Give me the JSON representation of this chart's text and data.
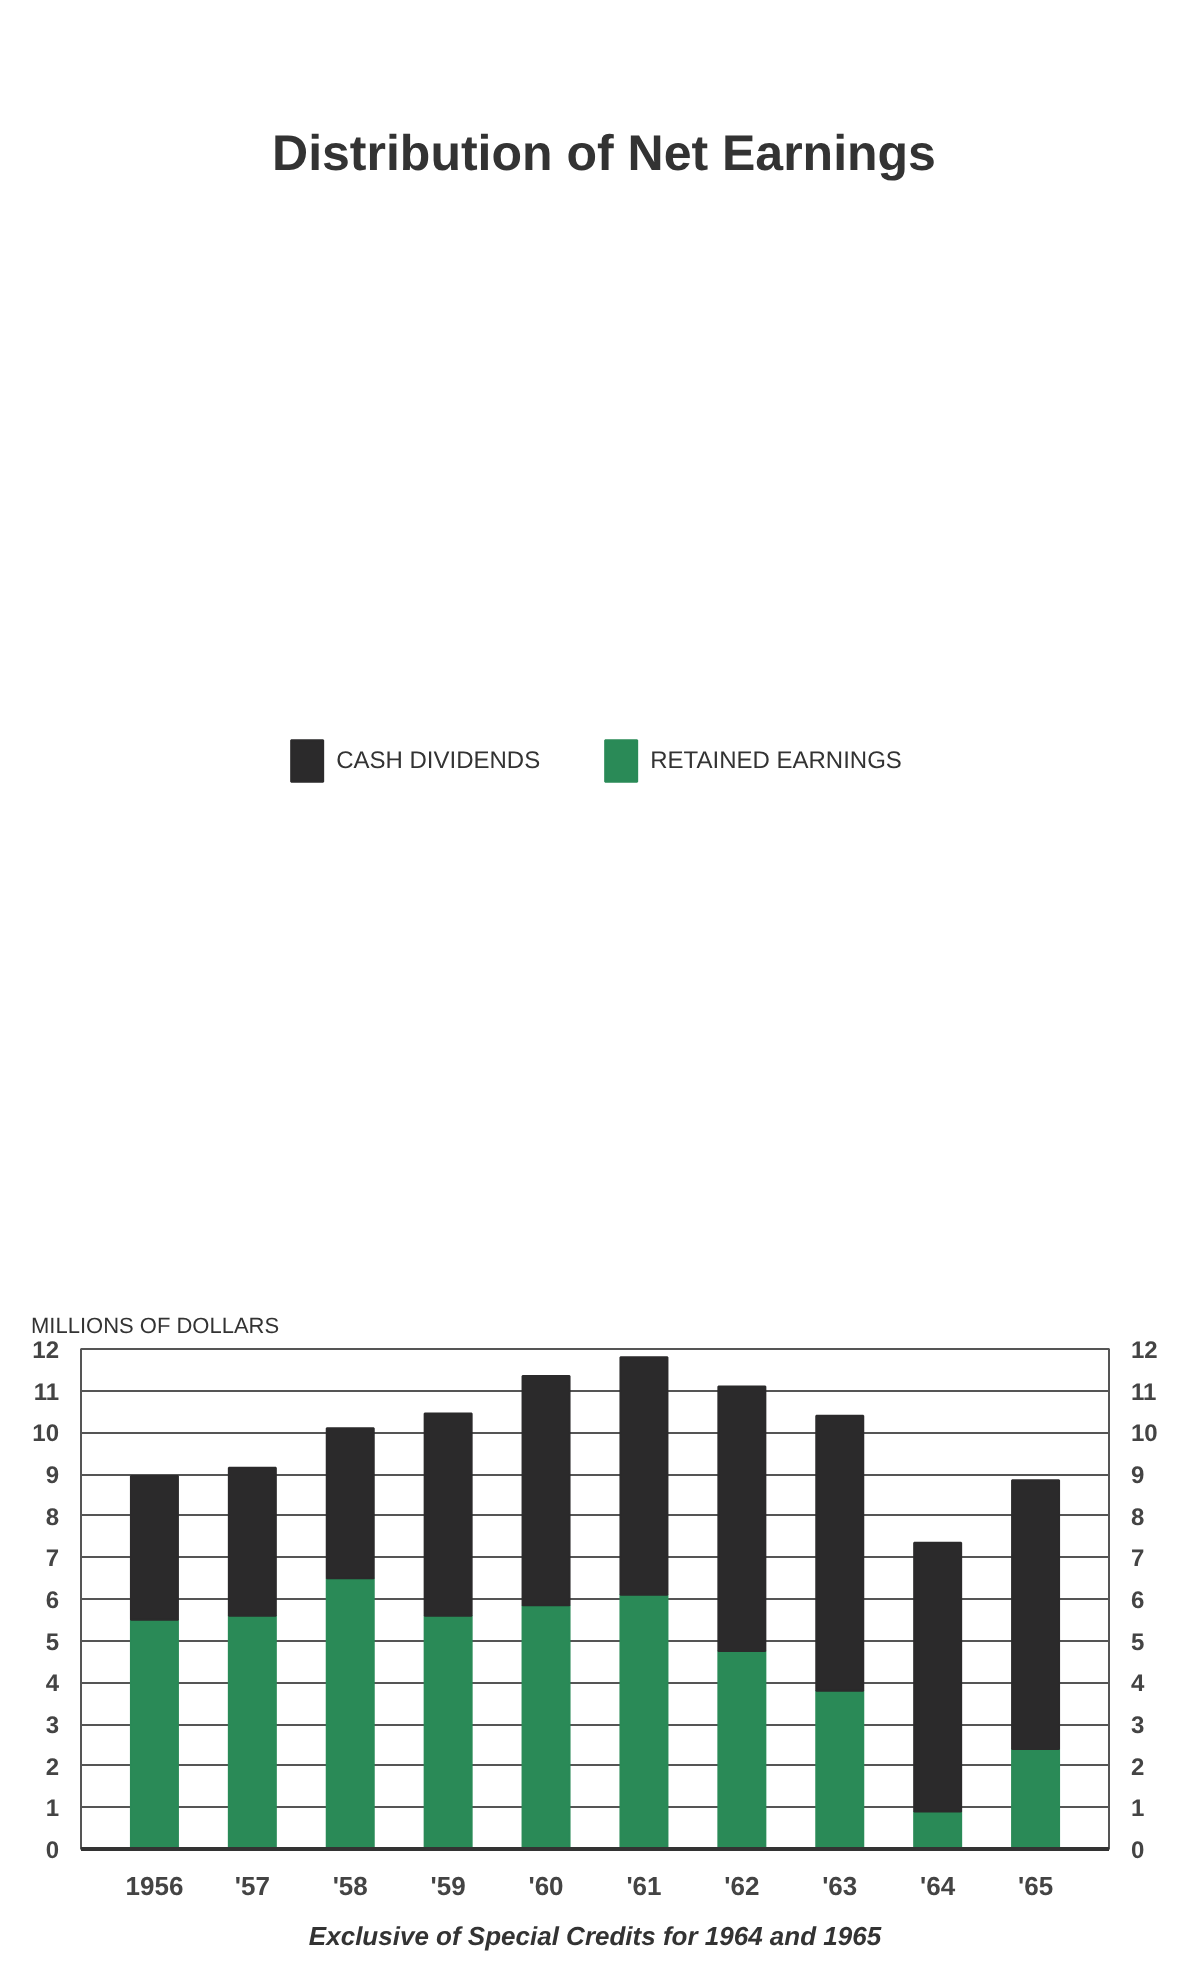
{
  "chart_data": {
    "type": "bar",
    "stacked": true,
    "title": "Distribution of Net Earnings",
    "ylabel": "MILLIONS OF DOLLARS",
    "categories": [
      "1956",
      "'57",
      "'58",
      "'59",
      "'60",
      "'61",
      "'62",
      "'63",
      "'64",
      "'65"
    ],
    "series": [
      {
        "name": "RETAINED EARNINGS",
        "color": "#2a8a57",
        "values": [
          5.5,
          5.6,
          6.5,
          5.6,
          5.85,
          6.1,
          4.75,
          3.8,
          0.9,
          2.4
        ]
      },
      {
        "name": "CASH DIVIDENDS",
        "color": "#2b2a2b",
        "values": [
          3.45,
          3.55,
          3.6,
          4.85,
          5.5,
          5.7,
          6.35,
          6.6,
          6.45,
          6.45
        ]
      }
    ],
    "ylim": [
      0,
      12
    ],
    "yticks": [
      0,
      1,
      2,
      3,
      4,
      5,
      6,
      7,
      8,
      9,
      10,
      11,
      12
    ],
    "y2lim": [
      0,
      12
    ],
    "y2ticks": [
      0,
      1,
      2,
      3,
      4,
      5,
      6,
      7,
      8,
      9,
      10,
      11,
      12
    ],
    "grid": "y",
    "legend": "top",
    "annotations": [
      "Exclusive of Special Credits for 1964 and 1965"
    ]
  }
}
